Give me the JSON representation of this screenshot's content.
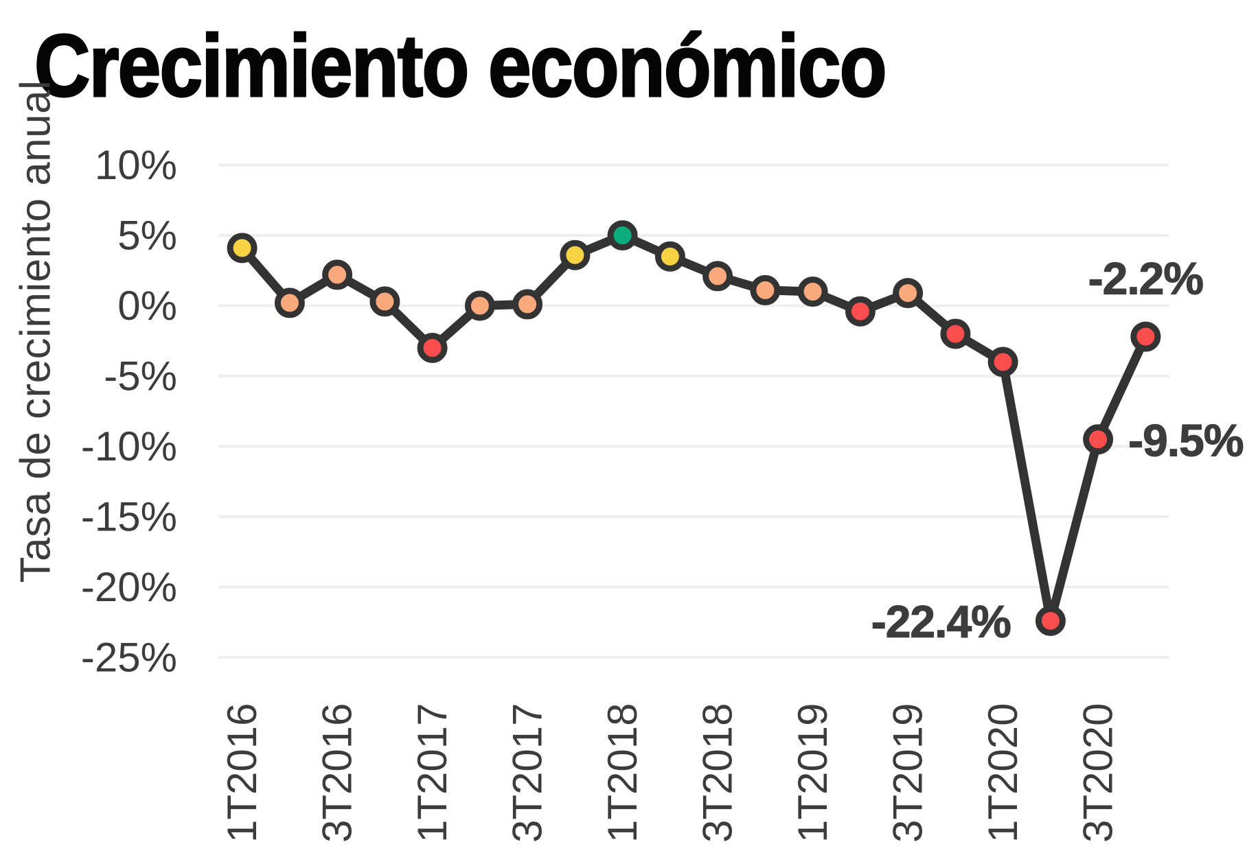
{
  "chart_data": {
    "type": "line",
    "title": "Crecimiento económico",
    "xlabel": "",
    "ylabel": "Tasa de crecimiento anual",
    "categories": [
      "1T2016",
      "2T2016",
      "3T2016",
      "4T2016",
      "1T2017",
      "2T2017",
      "3T2017",
      "4T2017",
      "1T2018",
      "2T2018",
      "3T2018",
      "4T2018",
      "1T2019",
      "2T2019",
      "3T2019",
      "4T2019",
      "1T2020",
      "2T2020",
      "3T2020",
      "4T2020"
    ],
    "x_tick_labels_shown": [
      "1T2016",
      "3T2016",
      "1T2017",
      "3T2017",
      "1T2018",
      "3T2018",
      "1T2019",
      "3T2019",
      "1T2020",
      "3T2020"
    ],
    "series": [
      {
        "name": "Tasa de crecimiento anual",
        "values": [
          4.1,
          0.2,
          2.2,
          0.3,
          -3.0,
          0.0,
          0.1,
          3.6,
          5.0,
          3.5,
          2.1,
          1.1,
          1.0,
          -0.4,
          0.9,
          -2.0,
          -4.0,
          -22.4,
          -9.5,
          -2.2
        ],
        "point_colors": [
          "yellow",
          "orange",
          "orange",
          "orange",
          "red",
          "orange",
          "orange",
          "yellow",
          "green",
          "yellow",
          "orange",
          "orange",
          "orange",
          "red",
          "orange",
          "red",
          "red",
          "red",
          "red",
          "red"
        ]
      }
    ],
    "yticks": [
      10,
      5,
      0,
      -5,
      -10,
      -15,
      -20,
      -25
    ],
    "ytick_suffix": "%",
    "ylim": [
      -27.5,
      11.5
    ],
    "grid": "horizontal",
    "legend": "none",
    "annotations": [
      {
        "label": "-22.4%",
        "point_index": 17,
        "placement": "left"
      },
      {
        "label": "-9.5%",
        "point_index": 18,
        "placement": "right"
      },
      {
        "label": "-2.2%",
        "point_index": 19,
        "placement": "above"
      }
    ]
  },
  "colors": {
    "background": "#ffffff",
    "title": "#050505",
    "axis_text": "#3c3c3c",
    "annotation_text": "#3c3c3c",
    "gridline": "#efefef",
    "line": "#333333",
    "marker_stroke": "#333333",
    "yellow": "#f7d343",
    "orange": "#f9a97c",
    "red": "#fa4d4d",
    "green": "#0cad7c"
  }
}
